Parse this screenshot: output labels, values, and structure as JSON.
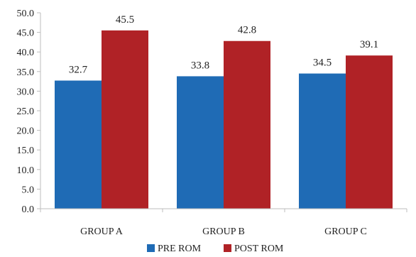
{
  "chart_data": {
    "type": "bar",
    "categories": [
      "GROUP A",
      "GROUP B",
      "GROUP C"
    ],
    "series": [
      {
        "name": "PRE ROM",
        "values": [
          32.7,
          33.8,
          34.5
        ],
        "color": "#1f6bb5"
      },
      {
        "name": "POST ROM",
        "values": [
          45.5,
          42.8,
          39.1
        ],
        "color": "#b02226"
      }
    ],
    "data_labels": [
      [
        "32.7",
        "33.8",
        "34.5"
      ],
      [
        "45.5",
        "42.8",
        "39.1"
      ]
    ],
    "ylim": [
      0,
      50
    ],
    "yticks": [
      0,
      5,
      10,
      15,
      20,
      25,
      30,
      35,
      40,
      45,
      50
    ],
    "ytick_labels": [
      "0.0",
      "5.0",
      "10.0",
      "15.0",
      "20.0",
      "25.0",
      "30.0",
      "35.0",
      "40.0",
      "45.0",
      "50.0"
    ],
    "grid": false,
    "legend_position": "bottom"
  }
}
